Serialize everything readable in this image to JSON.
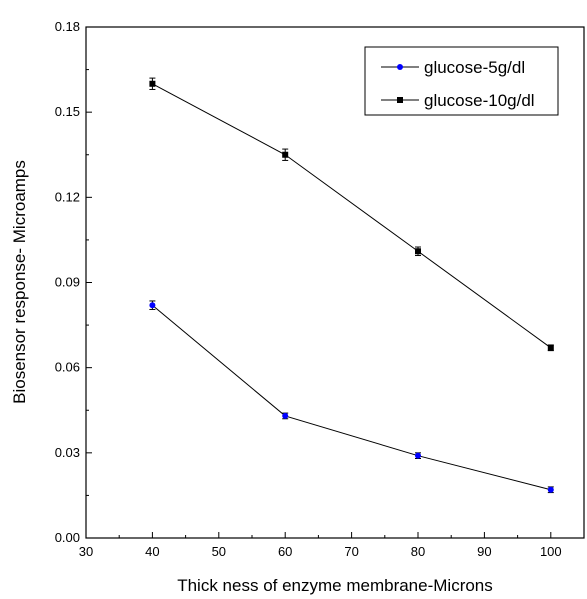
{
  "chart_data": {
    "type": "line",
    "xlabel": "Thick ness of enzyme membrane-Microns",
    "ylabel": "Biosensor response- Microamps",
    "xlim": [
      30,
      105
    ],
    "ylim": [
      0.0,
      0.18
    ],
    "x_ticks": [
      30,
      40,
      50,
      60,
      70,
      80,
      90,
      100
    ],
    "x_tick_labels": [
      "30",
      "40",
      "50",
      "60",
      "70",
      "80",
      "90",
      "100"
    ],
    "y_ticks": [
      0.0,
      0.03,
      0.06,
      0.09,
      0.12,
      0.15,
      0.18
    ],
    "y_tick_labels": [
      "0.00",
      "0.03",
      "0.06",
      "0.09",
      "0.12",
      "0.15",
      "0.18"
    ],
    "grid": false,
    "legend_position": "top-right",
    "series": [
      {
        "name": "glucose-5g/dl",
        "color": "#0000ff",
        "marker": "circle",
        "x": [
          40,
          60,
          80,
          100
        ],
        "y": [
          0.082,
          0.043,
          0.029,
          0.017
        ],
        "err": [
          0.0015,
          0.001,
          0.001,
          0.001
        ]
      },
      {
        "name": "glucose-10g/dl",
        "color": "#000000",
        "marker": "square",
        "x": [
          40,
          60,
          80,
          100
        ],
        "y": [
          0.16,
          0.135,
          0.101,
          0.067
        ],
        "err": [
          0.002,
          0.002,
          0.0015,
          0.001
        ]
      }
    ]
  }
}
